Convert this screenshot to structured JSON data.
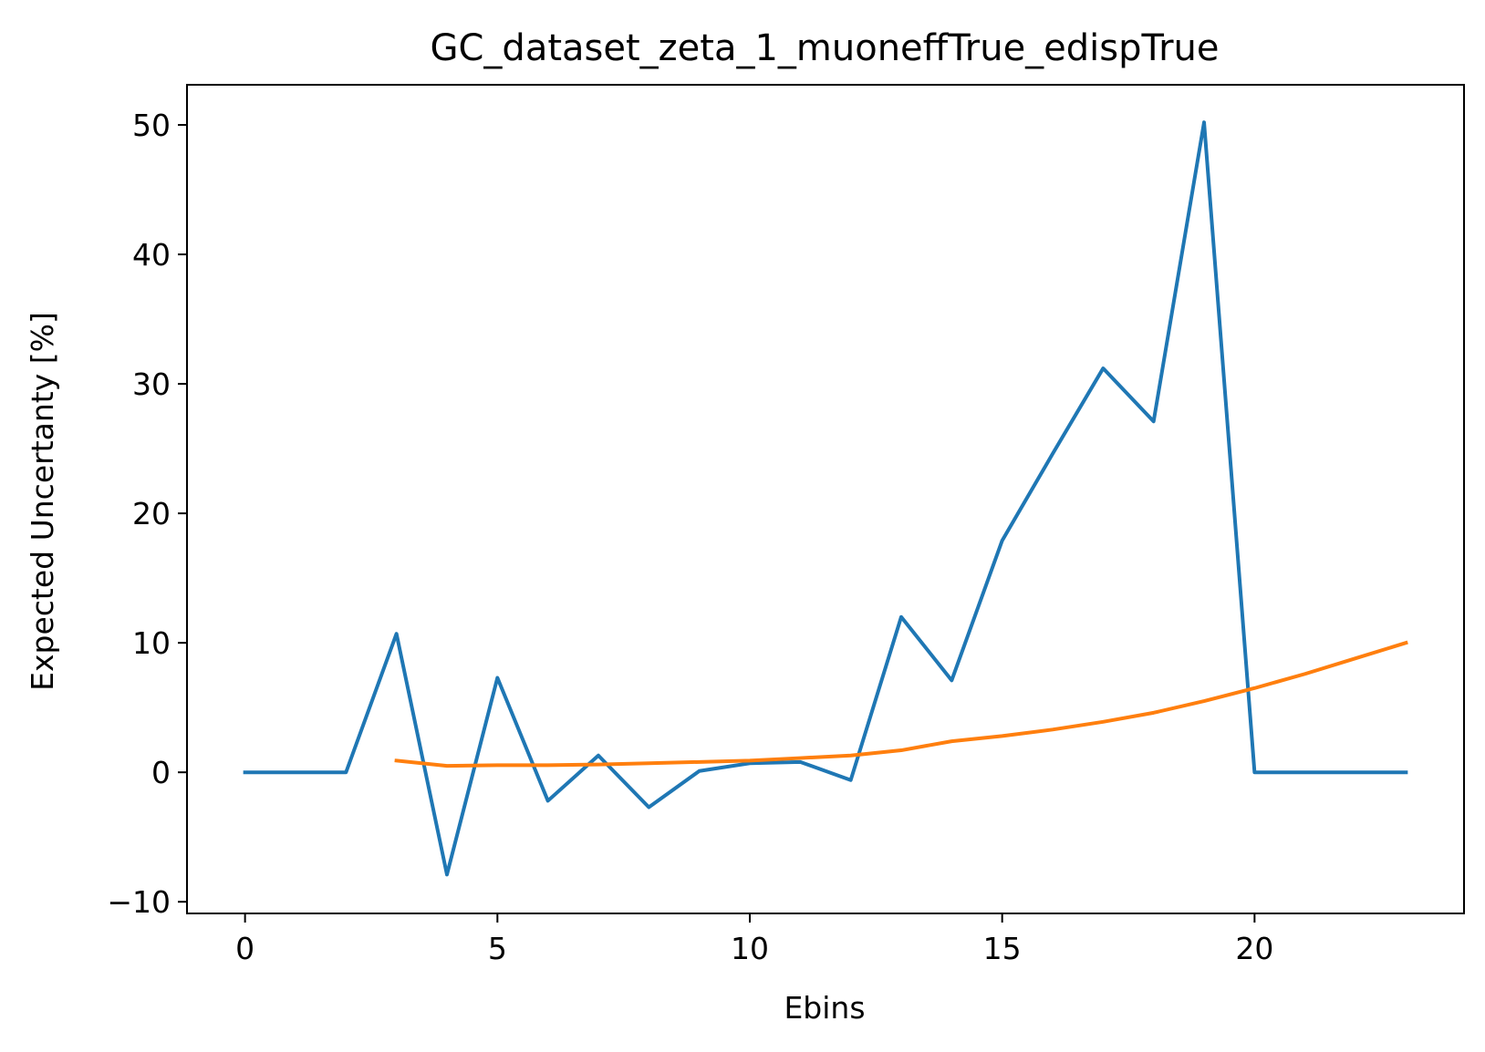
{
  "chart_data": {
    "type": "line",
    "title": "GC_dataset_zeta_1_muoneffTrue_edispTrue",
    "xlabel": "Ebins",
    "ylabel": "Expected Uncertanty [%]",
    "xlim": [
      -1.15,
      24.15
    ],
    "ylim": [
      -10.9,
      53.1
    ],
    "xticks": [
      0,
      5,
      10,
      15,
      20
    ],
    "xtick_labels": [
      "0",
      "5",
      "10",
      "15",
      "20"
    ],
    "yticks": [
      -10,
      0,
      10,
      20,
      30,
      40,
      50
    ],
    "ytick_labels": [
      "−10",
      "0",
      "10",
      "20",
      "30",
      "40",
      "50"
    ],
    "grid": false,
    "legend": null,
    "series": [
      {
        "color": "#1f77b4",
        "x": [
          0,
          1,
          2,
          3,
          4,
          5,
          6,
          7,
          8,
          9,
          10,
          11,
          12,
          13,
          14,
          15,
          16,
          17,
          18,
          19,
          20,
          21,
          22,
          23
        ],
        "y": [
          0,
          0,
          0,
          10.7,
          -7.9,
          7.3,
          -2.2,
          1.3,
          -2.7,
          0.1,
          0.7,
          0.8,
          -0.6,
          12.0,
          7.1,
          17.9,
          24.6,
          31.2,
          27.1,
          50.2,
          0,
          0,
          0,
          0
        ]
      },
      {
        "color": "#ff7f0e",
        "x": [
          3,
          4,
          5,
          6,
          7,
          8,
          9,
          10,
          11,
          12,
          13,
          14,
          15,
          16,
          17,
          18,
          19,
          20,
          21,
          22,
          23
        ],
        "y": [
          0.9,
          0.5,
          0.55,
          0.55,
          0.6,
          0.7,
          0.8,
          0.9,
          1.1,
          1.3,
          1.7,
          2.4,
          2.8,
          3.3,
          3.9,
          4.6,
          5.5,
          6.5,
          7.6,
          8.8,
          10.0
        ]
      }
    ]
  }
}
